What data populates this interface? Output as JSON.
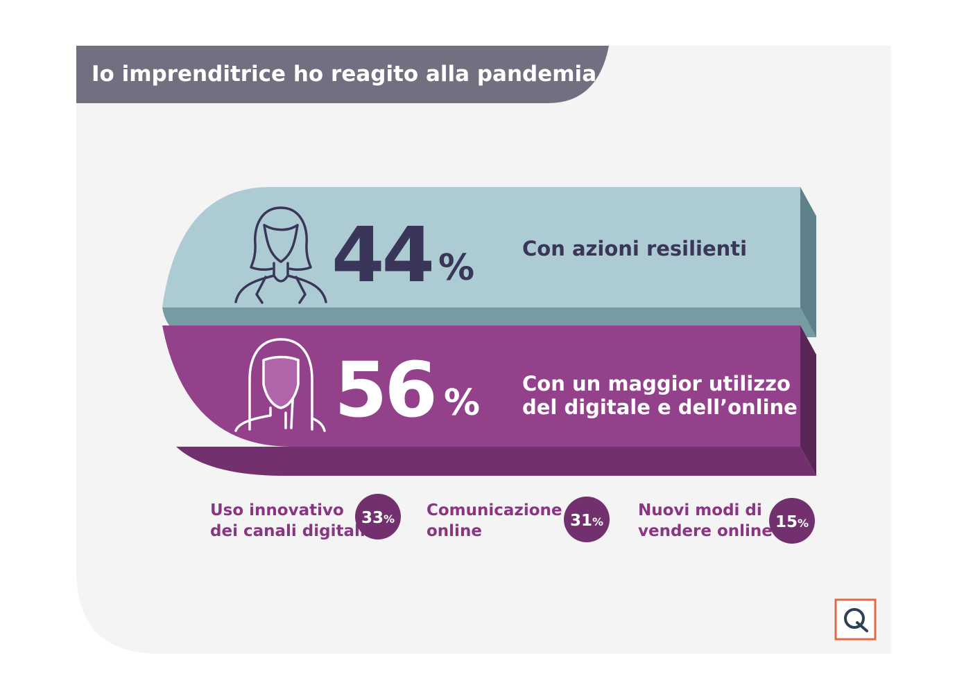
{
  "header": {
    "title": "Io imprenditrice ho reagito alla pandemia"
  },
  "colors": {
    "panel_bg": "#f4f4f4",
    "header_bg": "#736f80",
    "teal_front": "#adcbd3",
    "teal_bottom": "#769ba3",
    "teal_side": "#5f8189",
    "purple_front": "#94418c",
    "purple_bottom": "#72306e",
    "purple_side": "#592656",
    "navy_text": "#3a3659",
    "purple_text": "#8a3583",
    "logo_border": "#e06a45",
    "logo_fg": "#2e4056"
  },
  "icons": {
    "woman_short_hair": "woman-short-hair-icon",
    "woman_long_hair": "woman-long-hair-icon",
    "brand_logo": "q-logo-icon"
  },
  "chart_data": [
    {
      "type": "bar",
      "series": [
        {
          "value": 44,
          "value_label": "44",
          "unit": "%",
          "label": "Con azioni resilienti"
        },
        {
          "value": 56,
          "value_label": "56",
          "unit": "%",
          "label_lines": [
            "Con un maggior utilizzo",
            "del digitale e dell’online"
          ]
        }
      ]
    },
    {
      "type": "table",
      "items": [
        {
          "label_lines": [
            "Uso innovativo",
            "dei canali digitali"
          ],
          "value": 33,
          "value_label": "33",
          "unit": "%"
        },
        {
          "label_lines": [
            "Comunicazione",
            "online"
          ],
          "value": 31,
          "value_label": "31",
          "unit": "%"
        },
        {
          "label_lines": [
            "Nuovi modi di",
            "vendere online"
          ],
          "value": 15,
          "value_label": "15",
          "unit": "%"
        }
      ]
    }
  ]
}
